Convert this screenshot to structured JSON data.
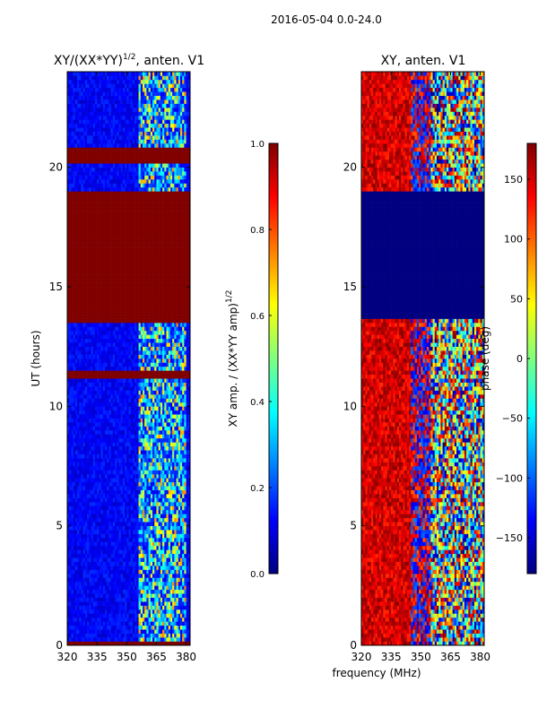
{
  "figure": {
    "suptitle": "2016-05-04 0.0-24.0",
    "xlabel_shared": "frequency (MHz)"
  },
  "colors": {
    "jet": [
      "#00007f",
      "#0000ff",
      "#007fff",
      "#00ffff",
      "#7fff7f",
      "#ffff00",
      "#ff7f00",
      "#ff0000",
      "#7f0000"
    ],
    "axes": "#000000",
    "background": "#ffffff"
  },
  "chart_data": [
    {
      "type": "heatmap",
      "title_main": "XY/(XX*YY)",
      "title_sup": "1/2",
      "title_tail": ", anten. V1",
      "xlabel": "",
      "ylabel": "UT (hours)",
      "xlim": [
        320,
        382
      ],
      "ylim": [
        0,
        24
      ],
      "xticks": [
        "320",
        "335",
        "350",
        "365",
        "380"
      ],
      "xtick_values": [
        320,
        335,
        350,
        365,
        380
      ],
      "yticks": [
        "0",
        "5",
        "10",
        "15",
        "20"
      ],
      "ytick_values": [
        0,
        5,
        10,
        15,
        20
      ],
      "saturated_bands_hours": [
        [
          13.5,
          19.0
        ],
        [
          20.1,
          20.8
        ],
        [
          11.2,
          11.45
        ],
        [
          0.0,
          0.12
        ]
      ],
      "saturated_value": 1.0,
      "background_value": 0.12,
      "high_variability_freq_range_mhz": [
        356,
        380
      ],
      "colorbar": {
        "label_main": "XY amp. / (XX*YY amp)",
        "label_sup": "1/2",
        "range": [
          0.0,
          1.0
        ],
        "ticks": [
          "0.0",
          "0.2",
          "0.4",
          "0.6",
          "0.8",
          "1.0"
        ],
        "tick_values": [
          0.0,
          0.2,
          0.4,
          0.6,
          0.8,
          1.0
        ]
      }
    },
    {
      "type": "heatmap",
      "title": "XY, anten. V1",
      "xlabel": "frequency (MHz)",
      "ylabel": "",
      "xlim": [
        320,
        382
      ],
      "ylim": [
        0,
        24
      ],
      "xticks": [
        "320",
        "335",
        "350",
        "365",
        "380"
      ],
      "xtick_values": [
        320,
        335,
        350,
        365,
        380
      ],
      "yticks": [
        "0",
        "5",
        "10",
        "15",
        "20"
      ],
      "ytick_values": [
        0,
        5,
        10,
        15,
        20
      ],
      "blank_band_hours": [
        13.6,
        19.0
      ],
      "blank_value_deg": -180,
      "colorbar": {
        "label": "phase (deg)",
        "range": [
          -180,
          180
        ],
        "ticks": [
          "−150",
          "−100",
          "−50",
          "0",
          "50",
          "100",
          "150"
        ],
        "tick_values": [
          -150,
          -100,
          -50,
          0,
          50,
          100,
          150
        ]
      }
    }
  ]
}
